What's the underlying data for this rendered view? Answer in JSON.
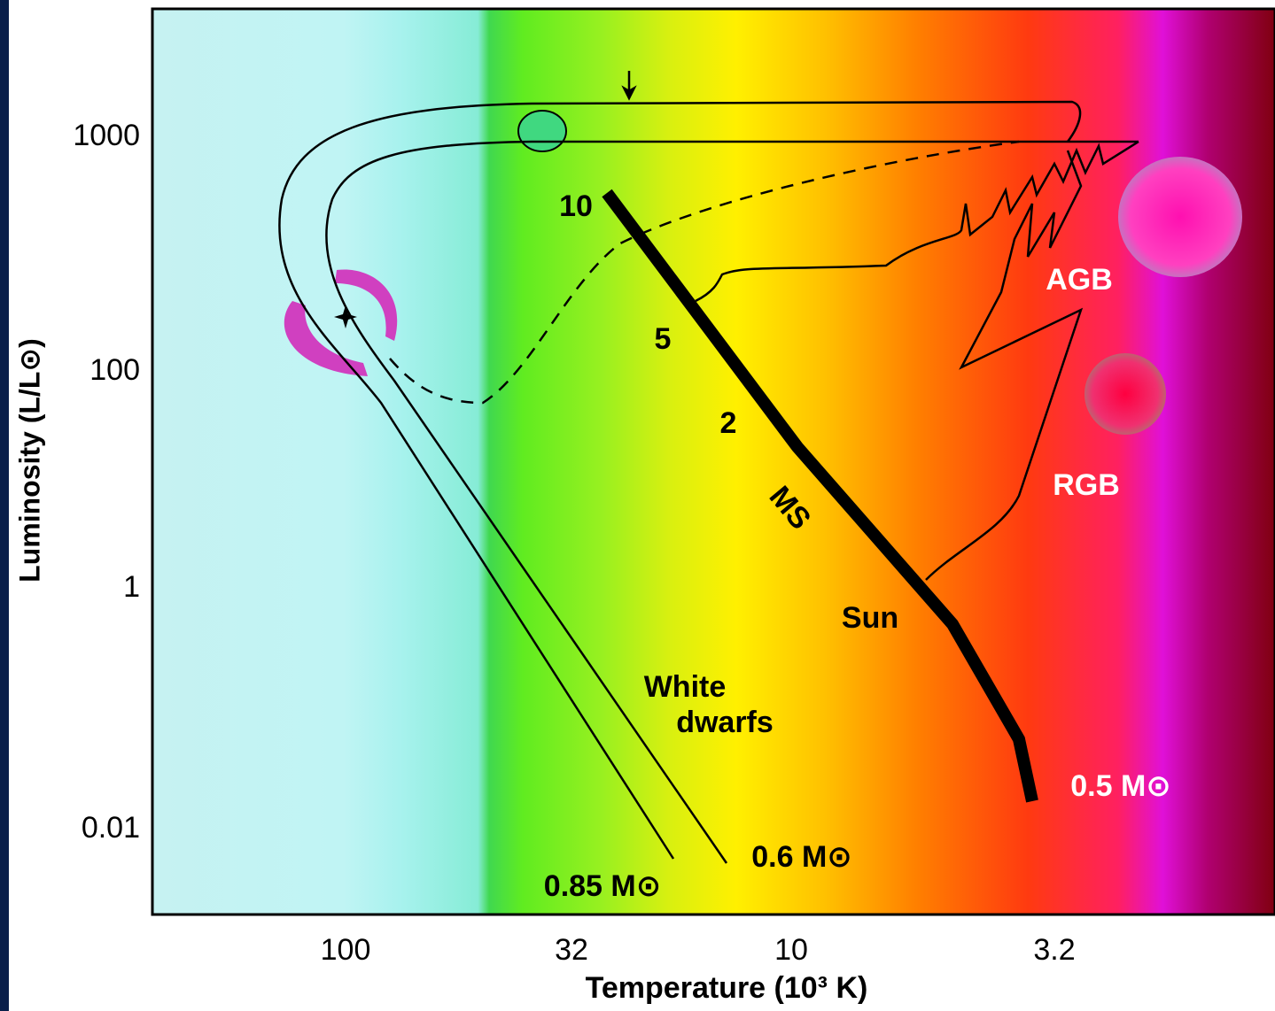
{
  "y_axis": {
    "label": "Luminosity (L/L⊙)",
    "ticks": [
      "1000",
      "100",
      "1",
      "0.01"
    ]
  },
  "x_axis": {
    "label": "Temperature (10³ K)",
    "ticks": [
      "100",
      "32",
      "10",
      "3.2"
    ]
  },
  "annotations": {
    "ms_masses": [
      "10",
      "5",
      "2"
    ],
    "ms": "MS",
    "sun": "Sun",
    "white_dwarfs": [
      "White",
      "dwarfs"
    ],
    "low_mass": "0.5 M⊙",
    "agb": "AGB",
    "rgb": "RGB",
    "wd_06": "0.6 M⊙",
    "wd_085": "0.85 M⊙"
  }
}
